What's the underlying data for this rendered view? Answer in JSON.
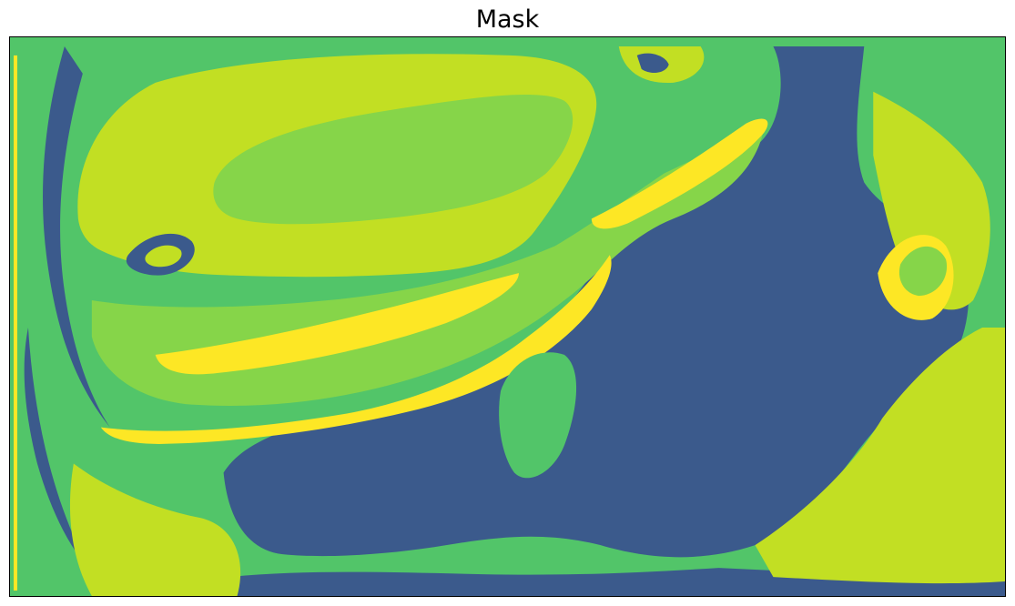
{
  "figure": {
    "title": "Mask"
  },
  "mask": {
    "palette": {
      "class_0": "#3b5a8c",
      "class_1": "#52c569",
      "class_2": "#86d549",
      "class_3": "#c2df23",
      "class_4": "#fde725"
    }
  }
}
